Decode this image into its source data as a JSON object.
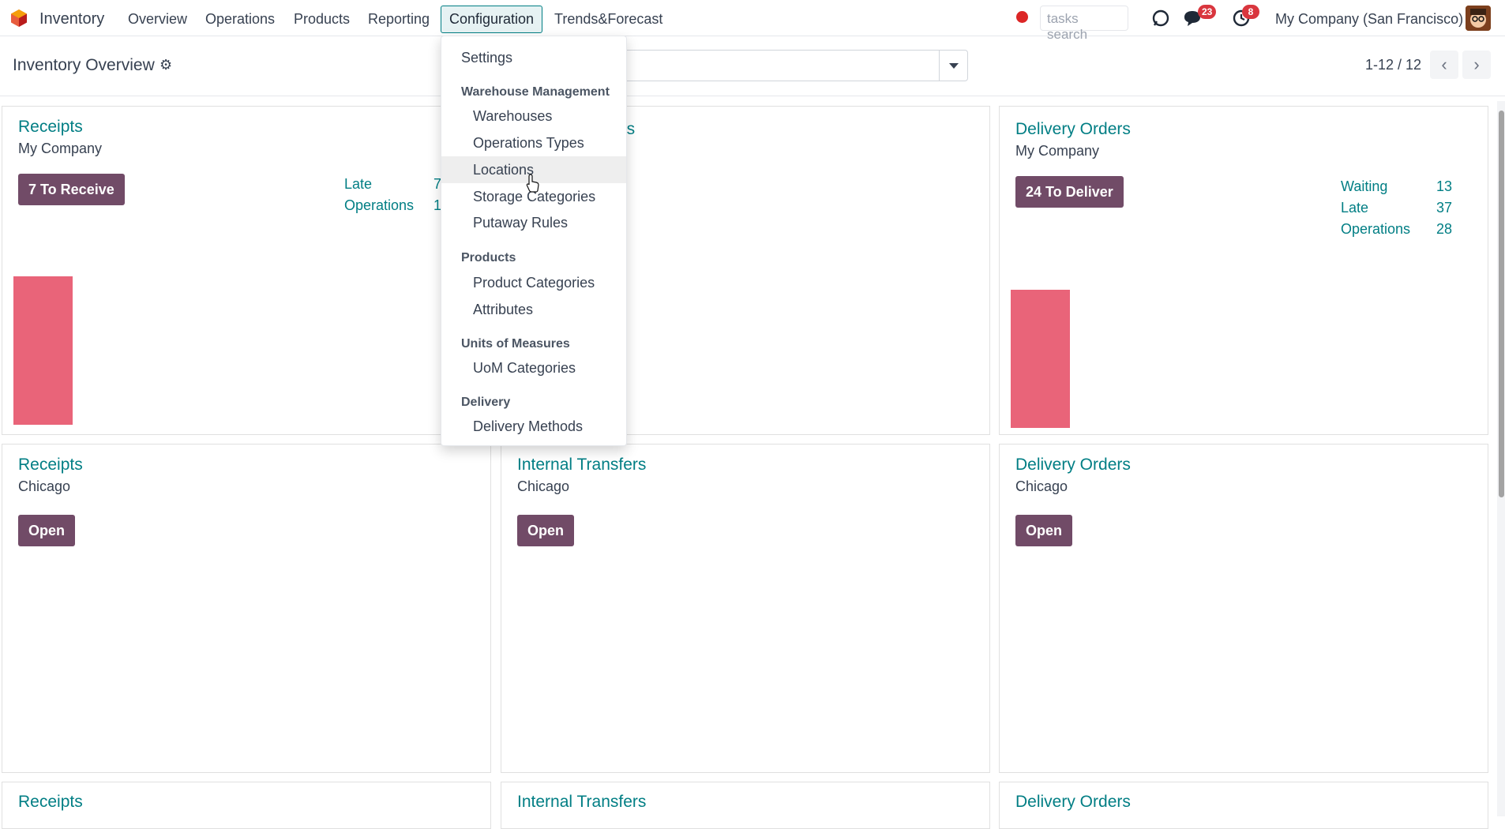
{
  "navbar": {
    "app_name": "Inventory",
    "menu": [
      "Overview",
      "Operations",
      "Products",
      "Reporting",
      "Configuration",
      "Trends&Forecast"
    ],
    "search_placeholder": "tasks search",
    "messages_badge": "23",
    "activities_badge": "8",
    "company": "My Company (San Francisco)"
  },
  "control_panel": {
    "title": "Inventory Overview",
    "pager": "1-12 / 12"
  },
  "dropdown": {
    "settings": "Settings",
    "sections": [
      {
        "header": "Warehouse Management",
        "items": [
          "Warehouses",
          "Operations Types",
          "Locations",
          "Storage Categories",
          "Putaway Rules"
        ]
      },
      {
        "header": "Products",
        "items": [
          "Product Categories",
          "Attributes"
        ]
      },
      {
        "header": "Units of Measures",
        "items": [
          "UoM Categories"
        ]
      },
      {
        "header": "Delivery",
        "items": [
          "Delivery Methods"
        ]
      }
    ],
    "hovered_item": "Locations"
  },
  "cards": [
    {
      "title": "Receipts",
      "subtitle": "My Company",
      "button": "7 To Receive",
      "stats": [
        {
          "label": "Late",
          "value": "7"
        },
        {
          "label": "Operations",
          "value": "1"
        }
      ]
    },
    {
      "title": "Internal Transfers",
      "title_visible": "ers",
      "subtitle": "",
      "button": ""
    },
    {
      "title": "Delivery Orders",
      "subtitle": "My Company",
      "button": "24 To Deliver",
      "stats": [
        {
          "label": "Waiting",
          "value": "13"
        },
        {
          "label": "Late",
          "value": "37"
        },
        {
          "label": "Operations",
          "value": "28"
        }
      ]
    },
    {
      "title": "Receipts",
      "subtitle": "Chicago",
      "button": "Open"
    },
    {
      "title": "Internal Transfers",
      "subtitle": "Chicago",
      "button": "Open"
    },
    {
      "title": "Delivery Orders",
      "subtitle": "Chicago",
      "button": "Open"
    },
    {
      "title": "Receipts"
    },
    {
      "title": "Internal Transfers"
    },
    {
      "title": "Delivery Orders"
    }
  ],
  "colors": {
    "accent": "#017e84",
    "button": "#714b67",
    "bar": "#e96479",
    "badge": "#d9363e"
  }
}
